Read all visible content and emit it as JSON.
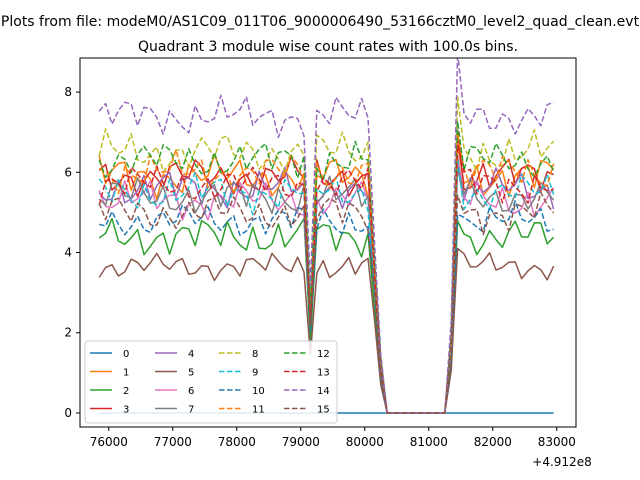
{
  "chart_data": {
    "type": "line",
    "suptitle": "Plots from file: modeM0/AS1C09_011T06_9000006490_53166cztM0_level2_quad_clean.evt",
    "title": "Quadrant 3 module wise count rates with 100.0s bins.",
    "xlabel": "",
    "ylabel": "",
    "x_offset_label": "+4.912e8",
    "xlim": [
      75550,
      83300
    ],
    "ylim": [
      -0.35,
      8.85
    ],
    "x_ticks": [
      76000,
      77000,
      78000,
      79000,
      80000,
      81000,
      82000,
      83000
    ],
    "x_tick_labels": [
      "76000",
      "77000",
      "78000",
      "79000",
      "80000",
      "81000",
      "82000",
      "83000"
    ],
    "y_ticks": [
      0,
      2,
      4,
      6,
      8
    ],
    "y_tick_labels": [
      "0",
      "2",
      "4",
      "6",
      "8"
    ],
    "legend_position": "lower-left",
    "legend_columns": 4,
    "series": [
      {
        "name": "0",
        "color": "#1f77b4",
        "dash": "solid",
        "base": 0.0,
        "amp": 0.0,
        "ph": 0
      },
      {
        "name": "1",
        "color": "#ff7f0e",
        "dash": "solid",
        "base": 5.9,
        "amp": 0.55,
        "ph": 1
      },
      {
        "name": "2",
        "color": "#2ca02c",
        "dash": "solid",
        "base": 4.4,
        "amp": 0.5,
        "ph": 2
      },
      {
        "name": "3",
        "color": "#d62728",
        "dash": "solid",
        "base": 5.9,
        "amp": 0.5,
        "ph": 3
      },
      {
        "name": "4",
        "color": "#9467bd",
        "dash": "solid",
        "base": 5.6,
        "amp": 0.5,
        "ph": 4
      },
      {
        "name": "5",
        "color": "#8c564b",
        "dash": "solid",
        "base": 3.65,
        "amp": 0.35,
        "ph": 5
      },
      {
        "name": "6",
        "color": "#e377c2",
        "dash": "solid",
        "base": 5.3,
        "amp": 0.5,
        "ph": 6
      },
      {
        "name": "7",
        "color": "#7f7f7f",
        "dash": "solid",
        "base": 5.4,
        "amp": 0.5,
        "ph": 7
      },
      {
        "name": "8",
        "color": "#bcbd22",
        "dash": "dashed",
        "base": 6.5,
        "amp": 0.55,
        "ph": 8
      },
      {
        "name": "9",
        "color": "#17becf",
        "dash": "dashed",
        "base": 5.5,
        "amp": 0.5,
        "ph": 9
      },
      {
        "name": "10",
        "color": "#1f77b4",
        "dash": "dashed",
        "base": 4.8,
        "amp": 0.45,
        "ph": 10
      },
      {
        "name": "11",
        "color": "#ff7f0e",
        "dash": "dashed",
        "base": 6.0,
        "amp": 0.5,
        "ph": 11
      },
      {
        "name": "12",
        "color": "#2ca02c",
        "dash": "dashed",
        "base": 6.3,
        "amp": 0.5,
        "ph": 12
      },
      {
        "name": "13",
        "color": "#d62728",
        "dash": "dashed",
        "base": 5.7,
        "amp": 0.5,
        "ph": 13
      },
      {
        "name": "14",
        "color": "#9467bd",
        "dash": "dashed",
        "base": 7.4,
        "amp": 0.5,
        "ph": 14
      },
      {
        "name": "15",
        "color": "#8c564b",
        "dash": "dashed",
        "base": 5.0,
        "amp": 0.5,
        "ph": 15
      }
    ],
    "time_range": [
      75850,
      82950
    ],
    "bin": 100,
    "gap": [
      80350,
      81350
    ]
  }
}
